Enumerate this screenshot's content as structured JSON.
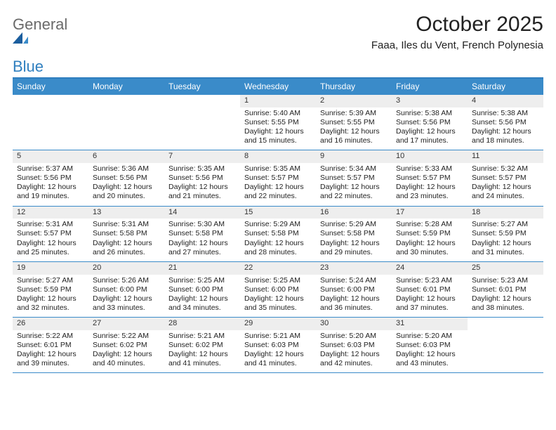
{
  "logo": {
    "general": "General",
    "blue": "Blue"
  },
  "title": "October 2025",
  "location": "Faaa, Iles du Vent, French Polynesia",
  "colors": {
    "header_bg": "#3a8bc9",
    "border": "#2f7fbf",
    "daynum_bg": "#eeeeee",
    "text": "#222222",
    "logo_blue": "#2f7fbf",
    "logo_gray": "#6a6a6a"
  },
  "dow": [
    "Sunday",
    "Monday",
    "Tuesday",
    "Wednesday",
    "Thursday",
    "Friday",
    "Saturday"
  ],
  "weeks": [
    [
      {
        "day": "",
        "sunrise": "",
        "sunset": "",
        "daylight1": "",
        "daylight2": ""
      },
      {
        "day": "",
        "sunrise": "",
        "sunset": "",
        "daylight1": "",
        "daylight2": ""
      },
      {
        "day": "",
        "sunrise": "",
        "sunset": "",
        "daylight1": "",
        "daylight2": ""
      },
      {
        "day": "1",
        "sunrise": "Sunrise: 5:40 AM",
        "sunset": "Sunset: 5:55 PM",
        "daylight1": "Daylight: 12 hours",
        "daylight2": "and 15 minutes."
      },
      {
        "day": "2",
        "sunrise": "Sunrise: 5:39 AM",
        "sunset": "Sunset: 5:55 PM",
        "daylight1": "Daylight: 12 hours",
        "daylight2": "and 16 minutes."
      },
      {
        "day": "3",
        "sunrise": "Sunrise: 5:38 AM",
        "sunset": "Sunset: 5:56 PM",
        "daylight1": "Daylight: 12 hours",
        "daylight2": "and 17 minutes."
      },
      {
        "day": "4",
        "sunrise": "Sunrise: 5:38 AM",
        "sunset": "Sunset: 5:56 PM",
        "daylight1": "Daylight: 12 hours",
        "daylight2": "and 18 minutes."
      }
    ],
    [
      {
        "day": "5",
        "sunrise": "Sunrise: 5:37 AM",
        "sunset": "Sunset: 5:56 PM",
        "daylight1": "Daylight: 12 hours",
        "daylight2": "and 19 minutes."
      },
      {
        "day": "6",
        "sunrise": "Sunrise: 5:36 AM",
        "sunset": "Sunset: 5:56 PM",
        "daylight1": "Daylight: 12 hours",
        "daylight2": "and 20 minutes."
      },
      {
        "day": "7",
        "sunrise": "Sunrise: 5:35 AM",
        "sunset": "Sunset: 5:56 PM",
        "daylight1": "Daylight: 12 hours",
        "daylight2": "and 21 minutes."
      },
      {
        "day": "8",
        "sunrise": "Sunrise: 5:35 AM",
        "sunset": "Sunset: 5:57 PM",
        "daylight1": "Daylight: 12 hours",
        "daylight2": "and 22 minutes."
      },
      {
        "day": "9",
        "sunrise": "Sunrise: 5:34 AM",
        "sunset": "Sunset: 5:57 PM",
        "daylight1": "Daylight: 12 hours",
        "daylight2": "and 22 minutes."
      },
      {
        "day": "10",
        "sunrise": "Sunrise: 5:33 AM",
        "sunset": "Sunset: 5:57 PM",
        "daylight1": "Daylight: 12 hours",
        "daylight2": "and 23 minutes."
      },
      {
        "day": "11",
        "sunrise": "Sunrise: 5:32 AM",
        "sunset": "Sunset: 5:57 PM",
        "daylight1": "Daylight: 12 hours",
        "daylight2": "and 24 minutes."
      }
    ],
    [
      {
        "day": "12",
        "sunrise": "Sunrise: 5:31 AM",
        "sunset": "Sunset: 5:57 PM",
        "daylight1": "Daylight: 12 hours",
        "daylight2": "and 25 minutes."
      },
      {
        "day": "13",
        "sunrise": "Sunrise: 5:31 AM",
        "sunset": "Sunset: 5:58 PM",
        "daylight1": "Daylight: 12 hours",
        "daylight2": "and 26 minutes."
      },
      {
        "day": "14",
        "sunrise": "Sunrise: 5:30 AM",
        "sunset": "Sunset: 5:58 PM",
        "daylight1": "Daylight: 12 hours",
        "daylight2": "and 27 minutes."
      },
      {
        "day": "15",
        "sunrise": "Sunrise: 5:29 AM",
        "sunset": "Sunset: 5:58 PM",
        "daylight1": "Daylight: 12 hours",
        "daylight2": "and 28 minutes."
      },
      {
        "day": "16",
        "sunrise": "Sunrise: 5:29 AM",
        "sunset": "Sunset: 5:58 PM",
        "daylight1": "Daylight: 12 hours",
        "daylight2": "and 29 minutes."
      },
      {
        "day": "17",
        "sunrise": "Sunrise: 5:28 AM",
        "sunset": "Sunset: 5:59 PM",
        "daylight1": "Daylight: 12 hours",
        "daylight2": "and 30 minutes."
      },
      {
        "day": "18",
        "sunrise": "Sunrise: 5:27 AM",
        "sunset": "Sunset: 5:59 PM",
        "daylight1": "Daylight: 12 hours",
        "daylight2": "and 31 minutes."
      }
    ],
    [
      {
        "day": "19",
        "sunrise": "Sunrise: 5:27 AM",
        "sunset": "Sunset: 5:59 PM",
        "daylight1": "Daylight: 12 hours",
        "daylight2": "and 32 minutes."
      },
      {
        "day": "20",
        "sunrise": "Sunrise: 5:26 AM",
        "sunset": "Sunset: 6:00 PM",
        "daylight1": "Daylight: 12 hours",
        "daylight2": "and 33 minutes."
      },
      {
        "day": "21",
        "sunrise": "Sunrise: 5:25 AM",
        "sunset": "Sunset: 6:00 PM",
        "daylight1": "Daylight: 12 hours",
        "daylight2": "and 34 minutes."
      },
      {
        "day": "22",
        "sunrise": "Sunrise: 5:25 AM",
        "sunset": "Sunset: 6:00 PM",
        "daylight1": "Daylight: 12 hours",
        "daylight2": "and 35 minutes."
      },
      {
        "day": "23",
        "sunrise": "Sunrise: 5:24 AM",
        "sunset": "Sunset: 6:00 PM",
        "daylight1": "Daylight: 12 hours",
        "daylight2": "and 36 minutes."
      },
      {
        "day": "24",
        "sunrise": "Sunrise: 5:23 AM",
        "sunset": "Sunset: 6:01 PM",
        "daylight1": "Daylight: 12 hours",
        "daylight2": "and 37 minutes."
      },
      {
        "day": "25",
        "sunrise": "Sunrise: 5:23 AM",
        "sunset": "Sunset: 6:01 PM",
        "daylight1": "Daylight: 12 hours",
        "daylight2": "and 38 minutes."
      }
    ],
    [
      {
        "day": "26",
        "sunrise": "Sunrise: 5:22 AM",
        "sunset": "Sunset: 6:01 PM",
        "daylight1": "Daylight: 12 hours",
        "daylight2": "and 39 minutes."
      },
      {
        "day": "27",
        "sunrise": "Sunrise: 5:22 AM",
        "sunset": "Sunset: 6:02 PM",
        "daylight1": "Daylight: 12 hours",
        "daylight2": "and 40 minutes."
      },
      {
        "day": "28",
        "sunrise": "Sunrise: 5:21 AM",
        "sunset": "Sunset: 6:02 PM",
        "daylight1": "Daylight: 12 hours",
        "daylight2": "and 41 minutes."
      },
      {
        "day": "29",
        "sunrise": "Sunrise: 5:21 AM",
        "sunset": "Sunset: 6:03 PM",
        "daylight1": "Daylight: 12 hours",
        "daylight2": "and 41 minutes."
      },
      {
        "day": "30",
        "sunrise": "Sunrise: 5:20 AM",
        "sunset": "Sunset: 6:03 PM",
        "daylight1": "Daylight: 12 hours",
        "daylight2": "and 42 minutes."
      },
      {
        "day": "31",
        "sunrise": "Sunrise: 5:20 AM",
        "sunset": "Sunset: 6:03 PM",
        "daylight1": "Daylight: 12 hours",
        "daylight2": "and 43 minutes."
      },
      {
        "day": "",
        "sunrise": "",
        "sunset": "",
        "daylight1": "",
        "daylight2": ""
      }
    ]
  ]
}
